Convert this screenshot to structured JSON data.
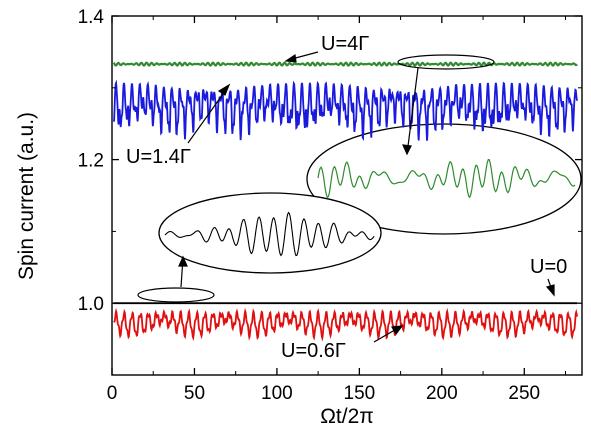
{
  "chart_data": {
    "type": "line",
    "xlabel": "Ωt/2π",
    "ylabel": "Spin current (a.u.)",
    "xlim": [
      0,
      285
    ],
    "ylim": [
      0.9,
      1.4
    ],
    "x_ticks": [
      0,
      50,
      100,
      150,
      200,
      250
    ],
    "y_ticks": [
      1.0,
      1.2,
      1.4
    ],
    "y_tick_labels": [
      "1.0",
      "1.2",
      "1.4"
    ],
    "grid": false,
    "legend": "none",
    "series": [
      {
        "name": "U=4Γ",
        "color": "#2e8b2e",
        "mean": 1.333,
        "amplitude": 0.002
      },
      {
        "name": "U=1.4Γ",
        "color": "#1a1adc",
        "mean": 1.295,
        "amplitude": 0.06
      },
      {
        "name": "U=0",
        "color": "#000000",
        "mean": 1.0,
        "amplitude": 0.0
      },
      {
        "name": "U=0.6Γ",
        "color": "#e01010",
        "mean": 0.985,
        "amplitude": 0.03
      }
    ],
    "annotations": [
      "U=4Γ",
      "U=1.4Γ",
      "U=0",
      "U=0.6Γ"
    ]
  }
}
